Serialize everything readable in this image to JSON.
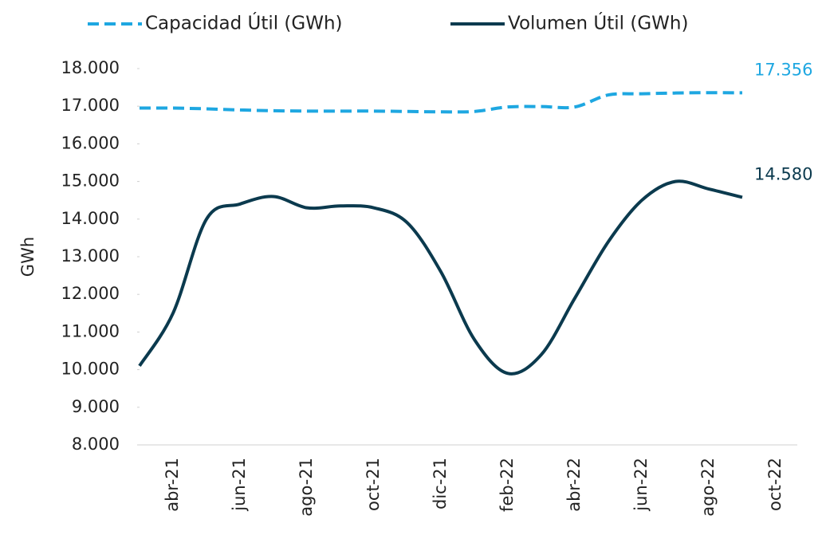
{
  "chart_data": {
    "type": "line",
    "y_label": "GWh",
    "categories": [
      null,
      "abr-21",
      null,
      "jun-21",
      null,
      "ago-21",
      null,
      "oct-21",
      null,
      "dic-21",
      null,
      "feb-22",
      null,
      "abr-22",
      null,
      "jun-22",
      null,
      "ago-22",
      null,
      "oct-22"
    ],
    "series": [
      {
        "name": "Capacidad Útil (GWh)",
        "color": "#1ea7e1",
        "dash": true,
        "values": [
          16950,
          16950,
          16930,
          16900,
          16880,
          16870,
          16870,
          16870,
          16860,
          16850,
          16860,
          16980,
          16990,
          16980,
          17300,
          17330,
          17350,
          17360,
          17356,
          null
        ],
        "value_labels": [
          null,
          null,
          null,
          null,
          null,
          null,
          null,
          null,
          null,
          null,
          null,
          null,
          null,
          null,
          null,
          null,
          null,
          null,
          "17.356",
          null
        ]
      },
      {
        "name": "Volumen Útil (GWh)",
        "color": "#0b3a4e",
        "dash": false,
        "values": [
          10100,
          11500,
          14000,
          14400,
          14600,
          14300,
          14350,
          14300,
          13900,
          12600,
          10800,
          9900,
          10400,
          11900,
          13400,
          14500,
          15000,
          14800,
          14580,
          null
        ],
        "value_labels": [
          null,
          null,
          null,
          null,
          null,
          null,
          null,
          null,
          null,
          null,
          null,
          null,
          null,
          null,
          null,
          null,
          null,
          null,
          "14.580",
          null
        ]
      }
    ],
    "ylim": [
      8000,
      18000
    ],
    "yticks": [
      {
        "value": 8000,
        "label": "8.000"
      },
      {
        "value": 9000,
        "label": "9.000"
      },
      {
        "value": 10000,
        "label": "10.000"
      },
      {
        "value": 11000,
        "label": "11.000"
      },
      {
        "value": 12000,
        "label": "12.000"
      },
      {
        "value": 13000,
        "label": "13.000"
      },
      {
        "value": 14000,
        "label": "14.000"
      },
      {
        "value": 15000,
        "label": "15.000"
      },
      {
        "value": 16000,
        "label": "16.000"
      },
      {
        "value": 17000,
        "label": "17.000"
      },
      {
        "value": 18000,
        "label": "18.000"
      }
    ],
    "legend": "top"
  }
}
